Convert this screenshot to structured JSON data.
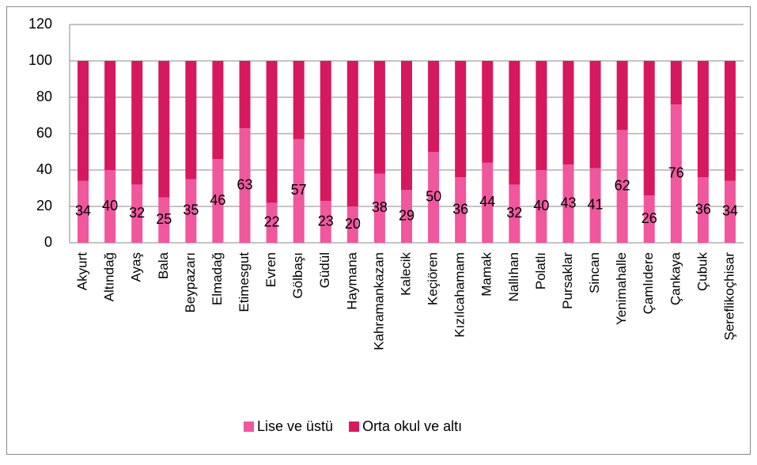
{
  "chart_data": {
    "type": "stacked_bar",
    "categories": [
      "Akyurt",
      "Altındağ",
      "Ayaş",
      "Bala",
      "Beypazarı",
      "Elmadağ",
      "Etimesgut",
      "Evren",
      "Gölbaşı",
      "Güdül",
      "Haymana",
      "Kahramankazan",
      "Kalecik",
      "Keçiören",
      "Kızılcahamam",
      "Mamak",
      "Nallıhan",
      "Polatlı",
      "Pursaklar",
      "Sincan",
      "Yenimahalle",
      "Çamlıdere",
      "Çankaya",
      "Çubuk",
      "Şereflikoçhisar"
    ],
    "series": [
      {
        "name": "Lise ve üstü",
        "color": "#f0579d",
        "values": [
          34,
          40,
          32,
          25,
          35,
          46,
          63,
          22,
          57,
          23,
          20,
          38,
          29,
          50,
          36,
          44,
          32,
          40,
          43,
          41,
          62,
          26,
          76,
          36,
          34
        ]
      },
      {
        "name": "Orta okul ve altı",
        "color": "#d6185e",
        "values": [
          66,
          60,
          68,
          75,
          65,
          54,
          37,
          78,
          43,
          77,
          80,
          62,
          71,
          50,
          64,
          56,
          68,
          60,
          57,
          59,
          38,
          74,
          24,
          64,
          66
        ]
      }
    ],
    "ylim": [
      0,
      120
    ],
    "yticks": [
      0,
      20,
      40,
      60,
      80,
      100,
      120
    ],
    "grid": true,
    "legend": "bottom"
  }
}
